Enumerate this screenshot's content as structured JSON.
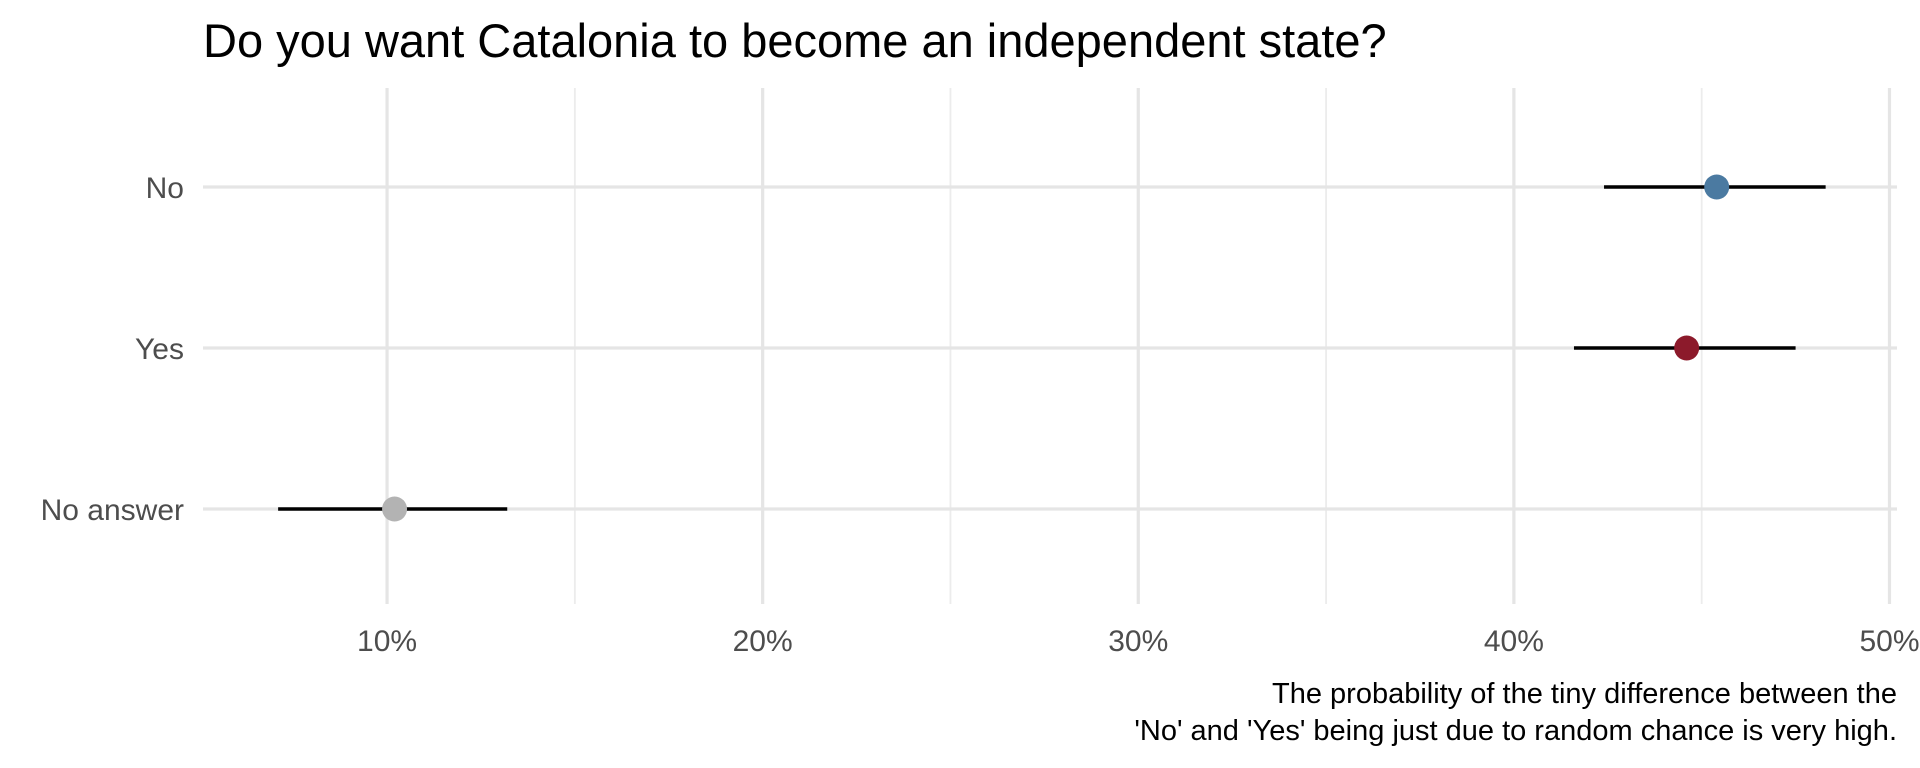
{
  "chart_data": {
    "type": "dot-with-error-bars",
    "title": "Do you want Catalonia to become an independent state?",
    "caption": [
      "The probability of the tiny difference between the",
      "'No' and 'Yes' being just due to random chance is very high."
    ],
    "xlabel": "",
    "ylabel": "",
    "xlim": [
      5.1,
      50.2
    ],
    "x_ticks": [
      {
        "value": 10,
        "label": "10%"
      },
      {
        "value": 20,
        "label": "20%"
      },
      {
        "value": 30,
        "label": "30%"
      },
      {
        "value": 40,
        "label": "40%"
      },
      {
        "value": 50,
        "label": "50%"
      }
    ],
    "x_minor_ticks": [
      15,
      25,
      35,
      45
    ],
    "grid": true,
    "legend": "none",
    "categories": [
      "No",
      "Yes",
      "No answer"
    ],
    "points": [
      {
        "category": "No",
        "value": 45.4,
        "low": 42.4,
        "high": 48.3,
        "color": "#4b7aa1"
      },
      {
        "category": "Yes",
        "value": 44.6,
        "low": 41.6,
        "high": 47.5,
        "color": "#8c1a2b"
      },
      {
        "category": "No answer",
        "value": 10.2,
        "low": 7.1,
        "high": 13.2,
        "color": "#b3b3b3"
      }
    ]
  }
}
